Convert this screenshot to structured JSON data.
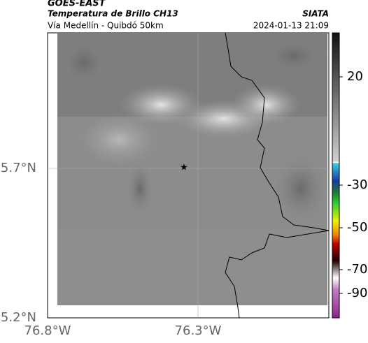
{
  "header": {
    "satellite": "GOES-EAST",
    "product": "Temperatura de Brillo CH13",
    "region": "Vía Medellín - Quibdó 50km",
    "source": "SIATA",
    "datetime": "2024-01-13 21:09"
  },
  "map": {
    "lat_ticks": [
      "5.7°N",
      "5.2°N"
    ],
    "lon_ticks": [
      "76.8°W",
      "76.3°W"
    ]
  },
  "colorbar": {
    "ticks": [
      20,
      -30,
      -50,
      -70,
      -90
    ]
  }
}
